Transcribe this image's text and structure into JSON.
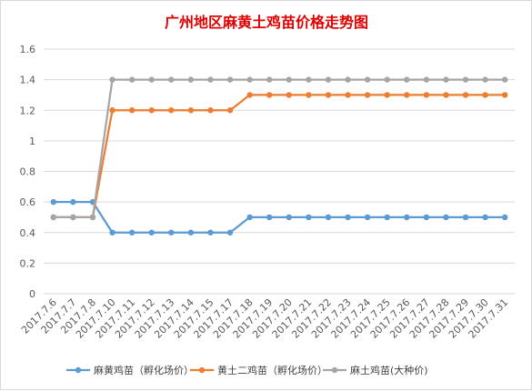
{
  "chart_data": {
    "type": "line",
    "title": "广州地区麻黄土鸡苗价格走势图",
    "title_color": "#e00000",
    "categories": [
      "2017.7.6",
      "2017.7.7",
      "2017.7.8",
      "2017.7.10",
      "2017.7.11",
      "2017.7.12",
      "2017.7.13",
      "2017.7.14",
      "2017.7.15",
      "2017.7.17",
      "2017.7.18",
      "2017.7.19",
      "2017.7.20",
      "2017.7.21",
      "2017.7.22",
      "2017.7.23",
      "2017.7.24",
      "2017.7.25",
      "2017.7.26",
      "2017.7.27",
      "2017.7.28",
      "2017.7.29",
      "2017.7.30",
      "2017.7.31"
    ],
    "series": [
      {
        "name": "麻黄鸡苗（孵化场价）",
        "color": "#5b9bd5",
        "values": [
          0.6,
          0.6,
          0.6,
          0.4,
          0.4,
          0.4,
          0.4,
          0.4,
          0.4,
          0.4,
          0.5,
          0.5,
          0.5,
          0.5,
          0.5,
          0.5,
          0.5,
          0.5,
          0.5,
          0.5,
          0.5,
          0.5,
          0.5,
          0.5
        ]
      },
      {
        "name": "黄土二鸡苗（孵化场价）",
        "color": "#ed7d31",
        "values": [
          0.5,
          0.5,
          0.5,
          1.2,
          1.2,
          1.2,
          1.2,
          1.2,
          1.2,
          1.2,
          1.3,
          1.3,
          1.3,
          1.3,
          1.3,
          1.3,
          1.3,
          1.3,
          1.3,
          1.3,
          1.3,
          1.3,
          1.3,
          1.3
        ]
      },
      {
        "name": "麻土鸡苗(大种价)",
        "color": "#a5a5a5",
        "values": [
          0.5,
          0.5,
          0.5,
          1.4,
          1.4,
          1.4,
          1.4,
          1.4,
          1.4,
          1.4,
          1.4,
          1.4,
          1.4,
          1.4,
          1.4,
          1.4,
          1.4,
          1.4,
          1.4,
          1.4,
          1.4,
          1.4,
          1.4,
          1.4
        ]
      }
    ],
    "y_ticks": [
      "0",
      "0.2",
      "0.4",
      "0.6",
      "0.8",
      "1",
      "1.2",
      "1.4",
      "1.6"
    ],
    "ylim": [
      0,
      1.6
    ],
    "grid": true,
    "legend_position": "bottom"
  }
}
